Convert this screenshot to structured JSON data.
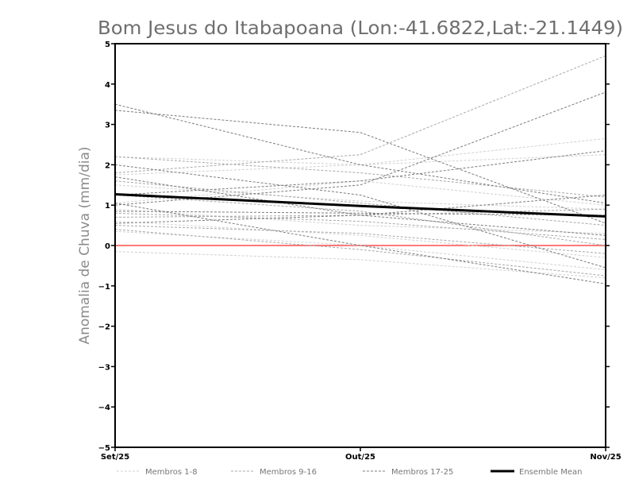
{
  "chart_data": {
    "type": "line",
    "title": "Bom Jesus do Itabapoana (Lon:-41.6822,Lat:-21.1449)",
    "xlabel": "",
    "ylabel": "Anomalia de Chuva (mm/dia)",
    "categories": [
      "Set/25",
      "Out/25",
      "Nov/25"
    ],
    "ylim": [
      -5,
      5
    ],
    "yticks": [
      -5,
      -4,
      -3,
      -2,
      -1,
      0,
      1,
      2,
      3,
      4,
      5
    ],
    "grid": false,
    "legend_position": "bottom",
    "zero_line_color": "#ff4d4d",
    "series": [
      {
        "group": "g1",
        "values": [
          2.2,
          2.0,
          2.65
        ]
      },
      {
        "group": "g1",
        "values": [
          1.75,
          2.0,
          2.25
        ]
      },
      {
        "group": "g1",
        "values": [
          1.5,
          1.1,
          0.9
        ]
      },
      {
        "group": "g1",
        "values": [
          0.9,
          0.5,
          0.3
        ]
      },
      {
        "group": "g1",
        "values": [
          0.6,
          0.25,
          -0.3
        ]
      },
      {
        "group": "g1",
        "values": [
          0.35,
          0.0,
          -0.6
        ]
      },
      {
        "group": "g1",
        "values": [
          -0.15,
          -0.35,
          -0.8
        ]
      },
      {
        "group": "g1",
        "values": [
          1.05,
          1.6,
          1.0
        ]
      },
      {
        "group": "g2",
        "values": [
          1.8,
          2.25,
          4.7
        ]
      },
      {
        "group": "g2",
        "values": [
          2.2,
          1.8,
          1.2
        ]
      },
      {
        "group": "g2",
        "values": [
          1.6,
          1.05,
          0.5
        ]
      },
      {
        "group": "g2",
        "values": [
          0.8,
          0.6,
          0.15
        ]
      },
      {
        "group": "g2",
        "values": [
          0.5,
          0.3,
          -0.2
        ]
      },
      {
        "group": "g2",
        "values": [
          0.4,
          -0.1,
          -0.75
        ]
      },
      {
        "group": "g2",
        "values": [
          1.25,
          0.85,
          0.0
        ]
      },
      {
        "group": "g2",
        "values": [
          0.7,
          0.75,
          0.9
        ]
      },
      {
        "group": "g3",
        "values": [
          3.5,
          2.0,
          1.05
        ]
      },
      {
        "group": "g3",
        "values": [
          3.35,
          2.8,
          0.55
        ]
      },
      {
        "group": "g3",
        "values": [
          1.0,
          1.5,
          3.8
        ]
      },
      {
        "group": "g3",
        "values": [
          1.25,
          1.6,
          2.35
        ]
      },
      {
        "group": "g3",
        "values": [
          2.0,
          1.25,
          -0.55
        ]
      },
      {
        "group": "g3",
        "values": [
          0.55,
          0.75,
          1.25
        ]
      },
      {
        "group": "g3",
        "values": [
          1.05,
          0.0,
          -0.95
        ]
      },
      {
        "group": "g3",
        "values": [
          1.7,
          0.75,
          0.25
        ]
      },
      {
        "group": "g3",
        "values": [
          0.85,
          0.8,
          0.75
        ]
      },
      {
        "group": "mean",
        "values": [
          1.27,
          0.98,
          0.72
        ]
      }
    ],
    "legend": [
      {
        "group": "g1",
        "label": "Membros 1-8",
        "color": "#d0d0d0"
      },
      {
        "group": "g2",
        "label": "Membros 9-16",
        "color": "#a8a8a8"
      },
      {
        "group": "g3",
        "label": "Membros 17-25",
        "color": "#7c7c7c"
      },
      {
        "group": "mean",
        "label": "Ensemble Mean",
        "color": "#000000"
      }
    ]
  }
}
